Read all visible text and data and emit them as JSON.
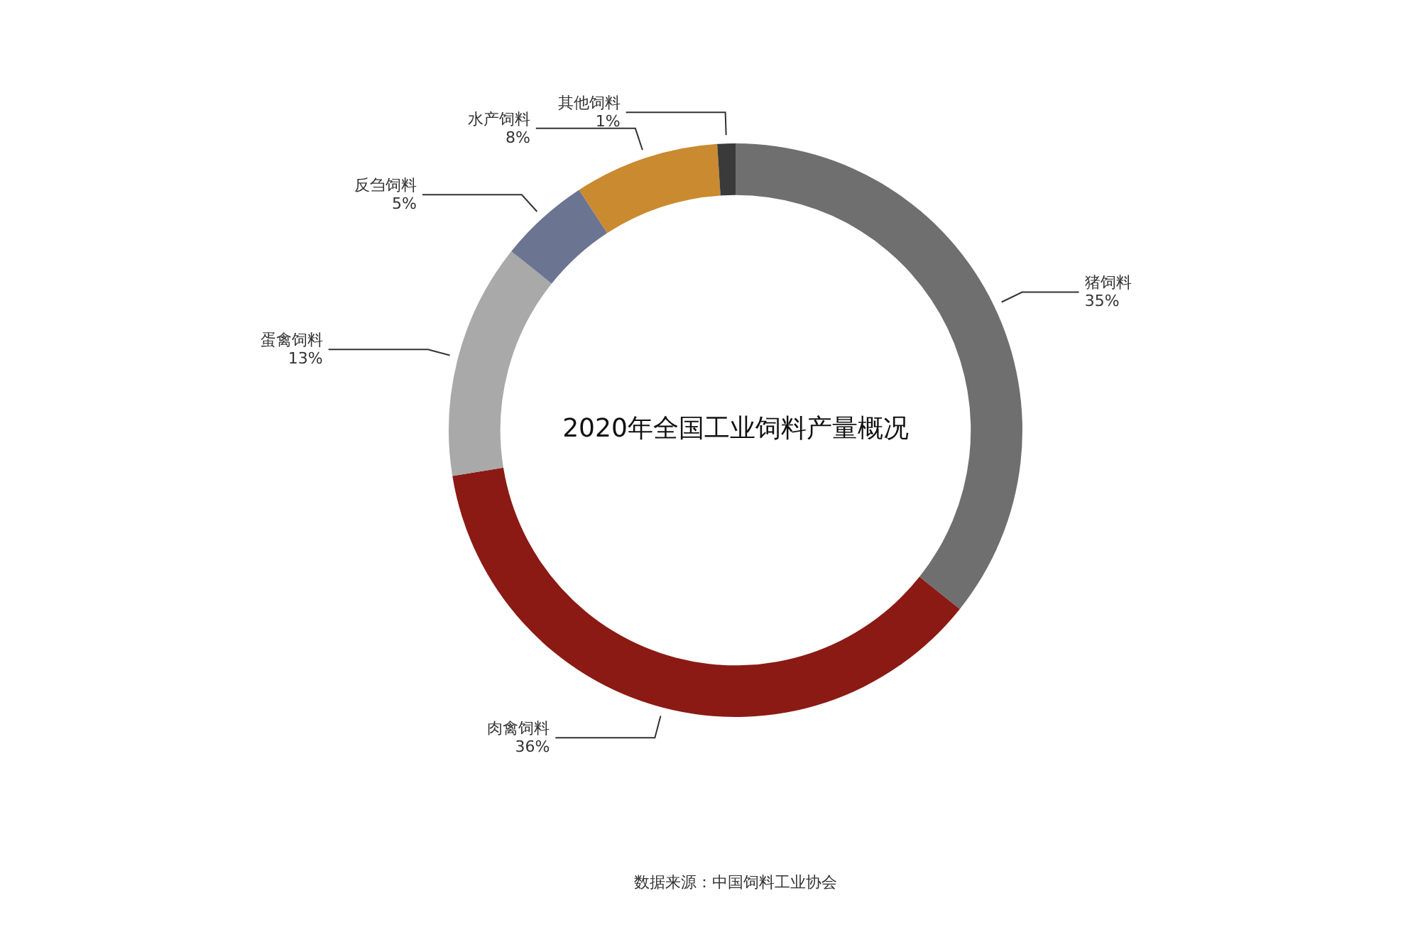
{
  "chart_data": {
    "type": "donut",
    "title": "2020年全国工业饲料产量概况",
    "categories": [
      "猪饲料",
      "肉禽饲料",
      "蛋禽饲料",
      "反刍饲料",
      "水产饲料",
      "其他饲料"
    ],
    "values": [
      35,
      36,
      13,
      5,
      8,
      1
    ],
    "value_labels": [
      "35%",
      "36%",
      "13%",
      "5%",
      "8%",
      "1%"
    ],
    "colors": [
      "#6f6f6f",
      "#8b1a14",
      "#a9a9a9",
      "#6b7591",
      "#c98a30",
      "#3a3a3a"
    ],
    "legend": false,
    "annotations": [
      "数据来源：中国饲料工业协会"
    ]
  }
}
